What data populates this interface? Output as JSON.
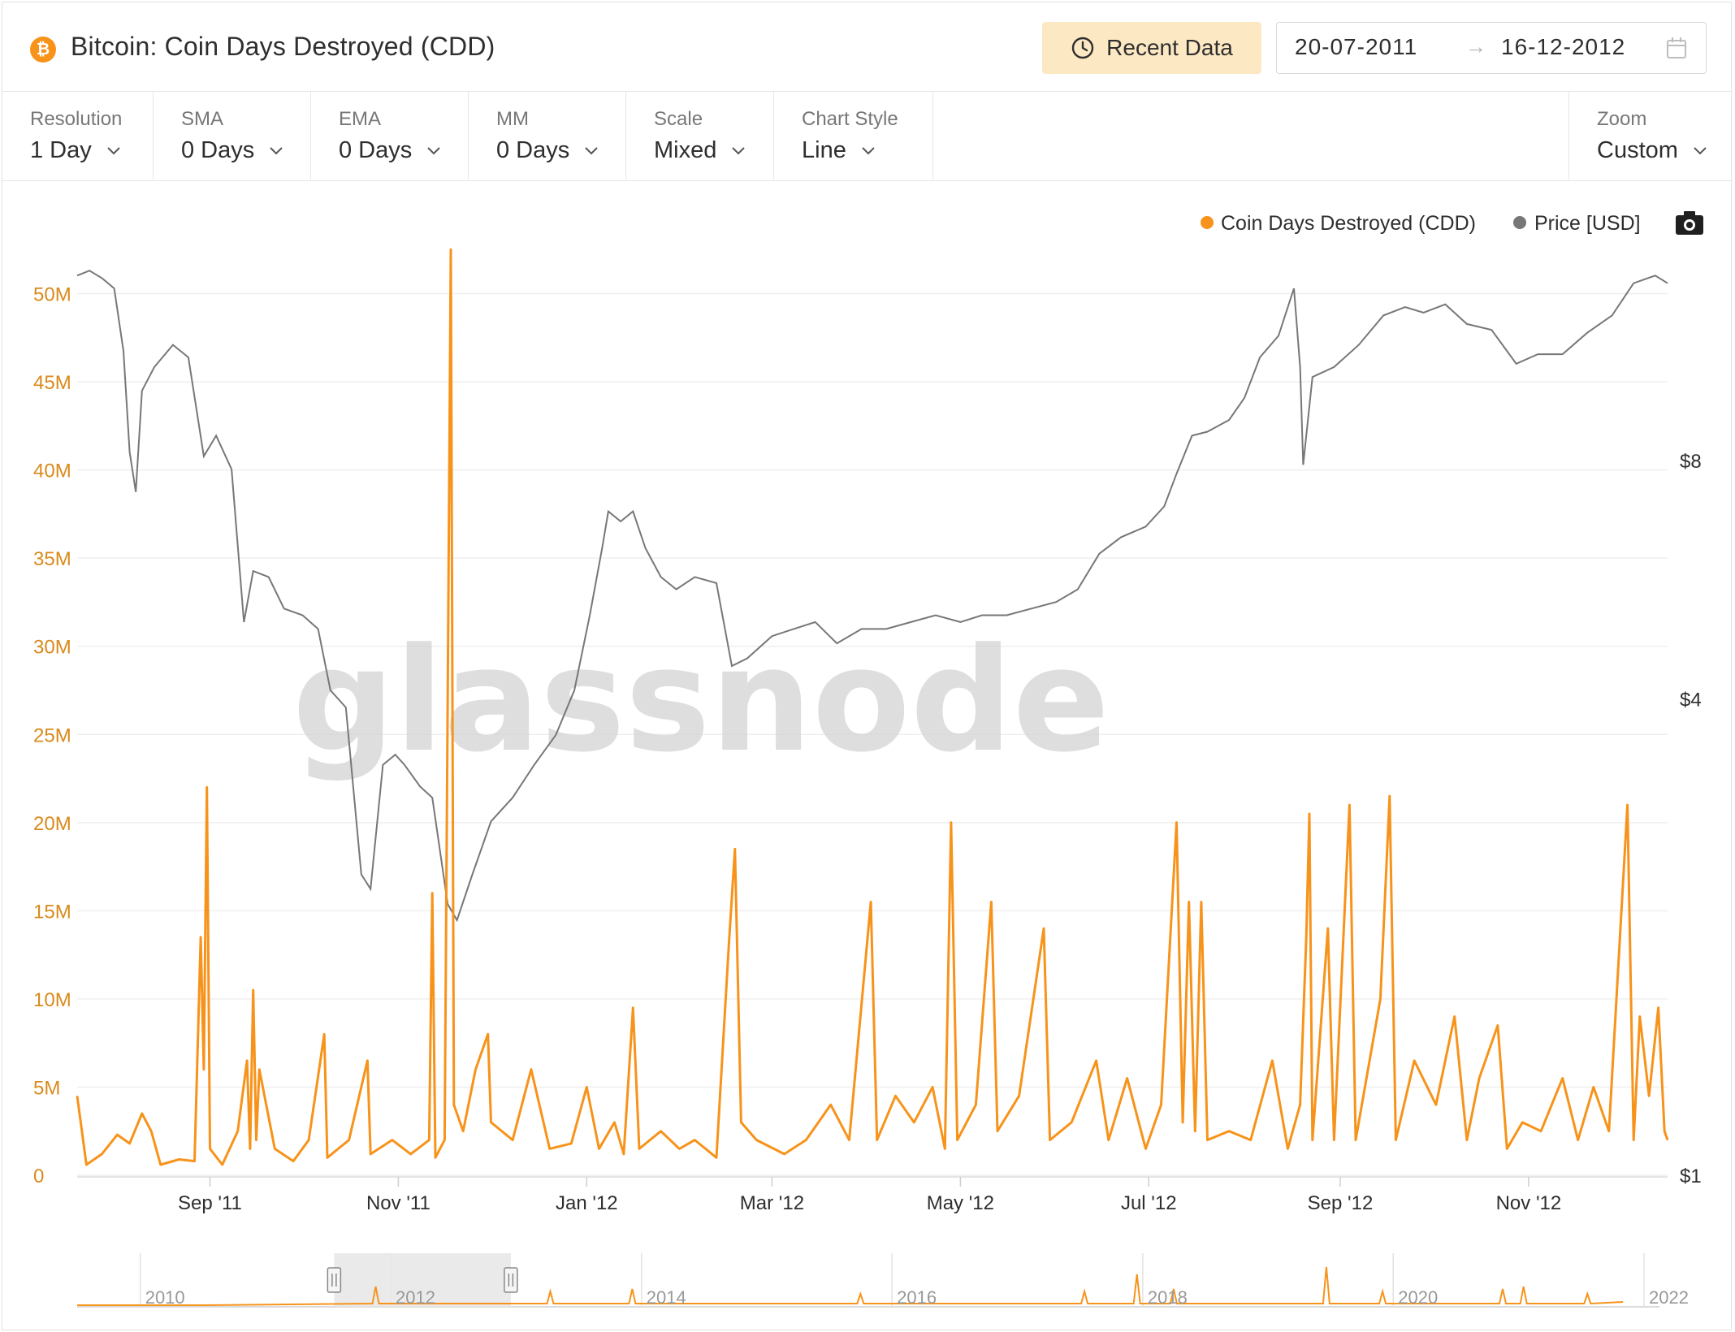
{
  "header": {
    "coin_symbol": "₿",
    "title": "Bitcoin: Coin Days Destroyed (CDD)",
    "recent_label": "Recent Data",
    "date_start": "20-07-2011",
    "date_arrow": "→",
    "date_end": "16-12-2012"
  },
  "controls": [
    {
      "label": "Resolution",
      "value": "1 Day"
    },
    {
      "label": "SMA",
      "value": "0 Days"
    },
    {
      "label": "EMA",
      "value": "0 Days"
    },
    {
      "label": "MM",
      "value": "0 Days"
    },
    {
      "label": "Scale",
      "value": "Mixed"
    },
    {
      "label": "Chart Style",
      "value": "Line"
    }
  ],
  "zoom": {
    "label": "Zoom",
    "value": "Custom"
  },
  "watermark": "glassnode",
  "colors": {
    "cdd": "#f7931a",
    "price": "#777777",
    "axis_left": "#d98a1c",
    "grid": "#efefef",
    "accent_button": "#fde8c4"
  },
  "chart_data": {
    "type": "line",
    "x_start": "2011-07-20",
    "x_end": "2012-12-16",
    "x_ticks": [
      {
        "label": "Sep '11",
        "date": "2011-09-01"
      },
      {
        "label": "Nov '11",
        "date": "2011-11-01"
      },
      {
        "label": "Jan '12",
        "date": "2012-01-01"
      },
      {
        "label": "Mar '12",
        "date": "2012-03-01"
      },
      {
        "label": "May '12",
        "date": "2012-05-01"
      },
      {
        "label": "Jul '12",
        "date": "2012-07-01"
      },
      {
        "label": "Sep '12",
        "date": "2012-09-01"
      },
      {
        "label": "Nov '12",
        "date": "2012-11-01"
      }
    ],
    "y_left": {
      "min": 0,
      "max": 55000000,
      "ticks": [
        0,
        5000000,
        10000000,
        15000000,
        20000000,
        25000000,
        30000000,
        35000000,
        40000000,
        45000000,
        50000000
      ],
      "tick_labels": [
        "0",
        "5M",
        "10M",
        "15M",
        "20M",
        "25M",
        "30M",
        "35M",
        "40M",
        "45M",
        "50M"
      ]
    },
    "y_right": {
      "scale": "log",
      "ticks": [
        1,
        4,
        8
      ],
      "tick_labels": [
        "$1",
        "$4",
        "$8"
      ]
    },
    "series": [
      {
        "name": "Coin Days Destroyed (CDD)",
        "axis": "left",
        "points": [
          [
            "2011-07-20",
            4500000
          ],
          [
            "2011-07-23",
            600000
          ],
          [
            "2011-07-28",
            1200000
          ],
          [
            "2011-08-02",
            2300000
          ],
          [
            "2011-08-06",
            1800000
          ],
          [
            "2011-08-10",
            3500000
          ],
          [
            "2011-08-13",
            2500000
          ],
          [
            "2011-08-16",
            600000
          ],
          [
            "2011-08-22",
            900000
          ],
          [
            "2011-08-27",
            800000
          ],
          [
            "2011-08-29",
            13500000
          ],
          [
            "2011-08-30",
            6000000
          ],
          [
            "2011-08-31",
            22000000
          ],
          [
            "2011-09-01",
            1500000
          ],
          [
            "2011-09-05",
            600000
          ],
          [
            "2011-09-10",
            2500000
          ],
          [
            "2011-09-13",
            6500000
          ],
          [
            "2011-09-14",
            1500000
          ],
          [
            "2011-09-15",
            10500000
          ],
          [
            "2011-09-16",
            2000000
          ],
          [
            "2011-09-17",
            6000000
          ],
          [
            "2011-09-22",
            1500000
          ],
          [
            "2011-09-28",
            800000
          ],
          [
            "2011-10-03",
            2000000
          ],
          [
            "2011-10-08",
            8000000
          ],
          [
            "2011-10-09",
            1000000
          ],
          [
            "2011-10-16",
            2000000
          ],
          [
            "2011-10-22",
            6500000
          ],
          [
            "2011-10-23",
            1200000
          ],
          [
            "2011-10-30",
            2000000
          ],
          [
            "2011-11-05",
            1200000
          ],
          [
            "2011-11-11",
            2000000
          ],
          [
            "2011-11-12",
            16000000
          ],
          [
            "2011-11-13",
            1000000
          ],
          [
            "2011-11-16",
            2000000
          ],
          [
            "2011-11-18",
            52500000
          ],
          [
            "2011-11-19",
            4000000
          ],
          [
            "2011-11-22",
            2500000
          ],
          [
            "2011-11-26",
            6000000
          ],
          [
            "2011-11-30",
            8000000
          ],
          [
            "2011-12-01",
            3000000
          ],
          [
            "2011-12-08",
            2000000
          ],
          [
            "2011-12-14",
            6000000
          ],
          [
            "2011-12-20",
            1500000
          ],
          [
            "2011-12-27",
            1800000
          ],
          [
            "2012-01-01",
            5000000
          ],
          [
            "2012-01-05",
            1500000
          ],
          [
            "2012-01-10",
            3000000
          ],
          [
            "2012-01-13",
            1200000
          ],
          [
            "2012-01-16",
            9500000
          ],
          [
            "2012-01-18",
            1500000
          ],
          [
            "2012-01-25",
            2500000
          ],
          [
            "2012-01-31",
            1500000
          ],
          [
            "2012-02-05",
            2000000
          ],
          [
            "2012-02-12",
            1000000
          ],
          [
            "2012-02-16",
            13000000
          ],
          [
            "2012-02-18",
            18500000
          ],
          [
            "2012-02-20",
            3000000
          ],
          [
            "2012-02-25",
            2000000
          ],
          [
            "2012-03-05",
            1200000
          ],
          [
            "2012-03-12",
            2000000
          ],
          [
            "2012-03-20",
            4000000
          ],
          [
            "2012-03-26",
            2000000
          ],
          [
            "2012-04-02",
            15500000
          ],
          [
            "2012-04-04",
            2000000
          ],
          [
            "2012-04-10",
            4500000
          ],
          [
            "2012-04-16",
            3000000
          ],
          [
            "2012-04-22",
            5000000
          ],
          [
            "2012-04-26",
            1500000
          ],
          [
            "2012-04-28",
            20000000
          ],
          [
            "2012-04-30",
            2000000
          ],
          [
            "2012-05-06",
            4000000
          ],
          [
            "2012-05-11",
            15500000
          ],
          [
            "2012-05-13",
            2500000
          ],
          [
            "2012-05-20",
            4500000
          ],
          [
            "2012-05-28",
            14000000
          ],
          [
            "2012-05-30",
            2000000
          ],
          [
            "2012-06-06",
            3000000
          ],
          [
            "2012-06-14",
            6500000
          ],
          [
            "2012-06-18",
            2000000
          ],
          [
            "2012-06-24",
            5500000
          ],
          [
            "2012-06-30",
            1500000
          ],
          [
            "2012-07-05",
            4000000
          ],
          [
            "2012-07-10",
            20000000
          ],
          [
            "2012-07-12",
            3000000
          ],
          [
            "2012-07-14",
            15500000
          ],
          [
            "2012-07-16",
            2500000
          ],
          [
            "2012-07-18",
            15500000
          ],
          [
            "2012-07-20",
            2000000
          ],
          [
            "2012-07-27",
            2500000
          ],
          [
            "2012-08-03",
            2000000
          ],
          [
            "2012-08-10",
            6500000
          ],
          [
            "2012-08-15",
            1500000
          ],
          [
            "2012-08-19",
            4000000
          ],
          [
            "2012-08-21",
            13500000
          ],
          [
            "2012-08-22",
            20500000
          ],
          [
            "2012-08-23",
            2000000
          ],
          [
            "2012-08-28",
            14000000
          ],
          [
            "2012-08-30",
            2000000
          ],
          [
            "2012-09-04",
            21000000
          ],
          [
            "2012-09-06",
            2000000
          ],
          [
            "2012-09-14",
            10000000
          ],
          [
            "2012-09-17",
            21500000
          ],
          [
            "2012-09-19",
            2000000
          ],
          [
            "2012-09-25",
            6500000
          ],
          [
            "2012-10-02",
            4000000
          ],
          [
            "2012-10-08",
            9000000
          ],
          [
            "2012-10-12",
            2000000
          ],
          [
            "2012-10-16",
            5500000
          ],
          [
            "2012-10-22",
            8500000
          ],
          [
            "2012-10-25",
            1500000
          ],
          [
            "2012-10-30",
            3000000
          ],
          [
            "2012-11-05",
            2500000
          ],
          [
            "2012-11-12",
            5500000
          ],
          [
            "2012-11-17",
            2000000
          ],
          [
            "2012-11-22",
            5000000
          ],
          [
            "2012-11-27",
            2500000
          ],
          [
            "2012-12-03",
            21000000
          ],
          [
            "2012-12-05",
            2000000
          ],
          [
            "2012-12-07",
            9000000
          ],
          [
            "2012-12-10",
            4500000
          ],
          [
            "2012-12-13",
            9500000
          ],
          [
            "2012-12-15",
            2500000
          ],
          [
            "2012-12-16",
            2000000
          ]
        ]
      },
      {
        "name": "Price [USD]",
        "axis": "right",
        "points": [
          [
            "2011-07-20",
            13.7
          ],
          [
            "2011-07-24",
            13.9
          ],
          [
            "2011-07-28",
            13.6
          ],
          [
            "2011-08-01",
            13.2
          ],
          [
            "2011-08-04",
            11.0
          ],
          [
            "2011-08-06",
            8.2
          ],
          [
            "2011-08-08",
            7.3
          ],
          [
            "2011-08-10",
            9.8
          ],
          [
            "2011-08-14",
            10.5
          ],
          [
            "2011-08-20",
            11.2
          ],
          [
            "2011-08-25",
            10.8
          ],
          [
            "2011-08-30",
            8.1
          ],
          [
            "2011-09-03",
            8.6
          ],
          [
            "2011-09-08",
            7.8
          ],
          [
            "2011-09-12",
            5.0
          ],
          [
            "2011-09-15",
            5.8
          ],
          [
            "2011-09-20",
            5.7
          ],
          [
            "2011-09-25",
            5.2
          ],
          [
            "2011-10-01",
            5.1
          ],
          [
            "2011-10-06",
            4.9
          ],
          [
            "2011-10-10",
            4.1
          ],
          [
            "2011-10-15",
            3.9
          ],
          [
            "2011-10-20",
            2.4
          ],
          [
            "2011-10-23",
            2.3
          ],
          [
            "2011-10-27",
            3.3
          ],
          [
            "2011-10-31",
            3.4
          ],
          [
            "2011-11-03",
            3.3
          ],
          [
            "2011-11-08",
            3.1
          ],
          [
            "2011-11-12",
            3.0
          ],
          [
            "2011-11-17",
            2.2
          ],
          [
            "2011-11-20",
            2.1
          ],
          [
            "2011-11-25",
            2.4
          ],
          [
            "2011-12-01",
            2.8
          ],
          [
            "2011-12-08",
            3.0
          ],
          [
            "2011-12-15",
            3.3
          ],
          [
            "2011-12-22",
            3.6
          ],
          [
            "2011-12-28",
            4.1
          ],
          [
            "2012-01-02",
            5.1
          ],
          [
            "2012-01-06",
            6.2
          ],
          [
            "2012-01-08",
            6.9
          ],
          [
            "2012-01-12",
            6.7
          ],
          [
            "2012-01-16",
            6.9
          ],
          [
            "2012-01-20",
            6.2
          ],
          [
            "2012-01-25",
            5.7
          ],
          [
            "2012-01-30",
            5.5
          ],
          [
            "2012-02-05",
            5.7
          ],
          [
            "2012-02-12",
            5.6
          ],
          [
            "2012-02-17",
            4.4
          ],
          [
            "2012-02-22",
            4.5
          ],
          [
            "2012-03-01",
            4.8
          ],
          [
            "2012-03-08",
            4.9
          ],
          [
            "2012-03-15",
            5.0
          ],
          [
            "2012-03-22",
            4.7
          ],
          [
            "2012-03-30",
            4.9
          ],
          [
            "2012-04-07",
            4.9
          ],
          [
            "2012-04-15",
            5.0
          ],
          [
            "2012-04-23",
            5.1
          ],
          [
            "2012-05-01",
            5.0
          ],
          [
            "2012-05-08",
            5.1
          ],
          [
            "2012-05-16",
            5.1
          ],
          [
            "2012-05-24",
            5.2
          ],
          [
            "2012-06-01",
            5.3
          ],
          [
            "2012-06-08",
            5.5
          ],
          [
            "2012-06-15",
            6.1
          ],
          [
            "2012-06-22",
            6.4
          ],
          [
            "2012-06-30",
            6.6
          ],
          [
            "2012-07-06",
            7.0
          ],
          [
            "2012-07-10",
            7.7
          ],
          [
            "2012-07-15",
            8.6
          ],
          [
            "2012-07-20",
            8.7
          ],
          [
            "2012-07-27",
            9.0
          ],
          [
            "2012-08-01",
            9.6
          ],
          [
            "2012-08-06",
            10.8
          ],
          [
            "2012-08-12",
            11.5
          ],
          [
            "2012-08-17",
            13.2
          ],
          [
            "2012-08-19",
            10.5
          ],
          [
            "2012-08-20",
            7.9
          ],
          [
            "2012-08-23",
            10.2
          ],
          [
            "2012-08-30",
            10.5
          ],
          [
            "2012-09-07",
            11.2
          ],
          [
            "2012-09-15",
            12.2
          ],
          [
            "2012-09-22",
            12.5
          ],
          [
            "2012-09-28",
            12.3
          ],
          [
            "2012-10-05",
            12.6
          ],
          [
            "2012-10-12",
            11.9
          ],
          [
            "2012-10-20",
            11.7
          ],
          [
            "2012-10-28",
            10.6
          ],
          [
            "2012-11-04",
            10.9
          ],
          [
            "2012-11-12",
            10.9
          ],
          [
            "2012-11-20",
            11.6
          ],
          [
            "2012-11-28",
            12.2
          ],
          [
            "2012-12-05",
            13.4
          ],
          [
            "2012-12-12",
            13.7
          ],
          [
            "2012-12-16",
            13.4
          ]
        ]
      }
    ],
    "legend": [
      {
        "name": "Coin Days Destroyed (CDD)",
        "color": "#f7931a"
      },
      {
        "name": "Price [USD]",
        "color": "#777777"
      }
    ],
    "legend_position": "top-right",
    "grid": true,
    "navigator": {
      "tick_labels": [
        "2010",
        "2012",
        "2014",
        "2016",
        "2018",
        "2020",
        "2022"
      ],
      "selected_start": "2011-07-20",
      "selected_end": "2012-12-16"
    }
  }
}
